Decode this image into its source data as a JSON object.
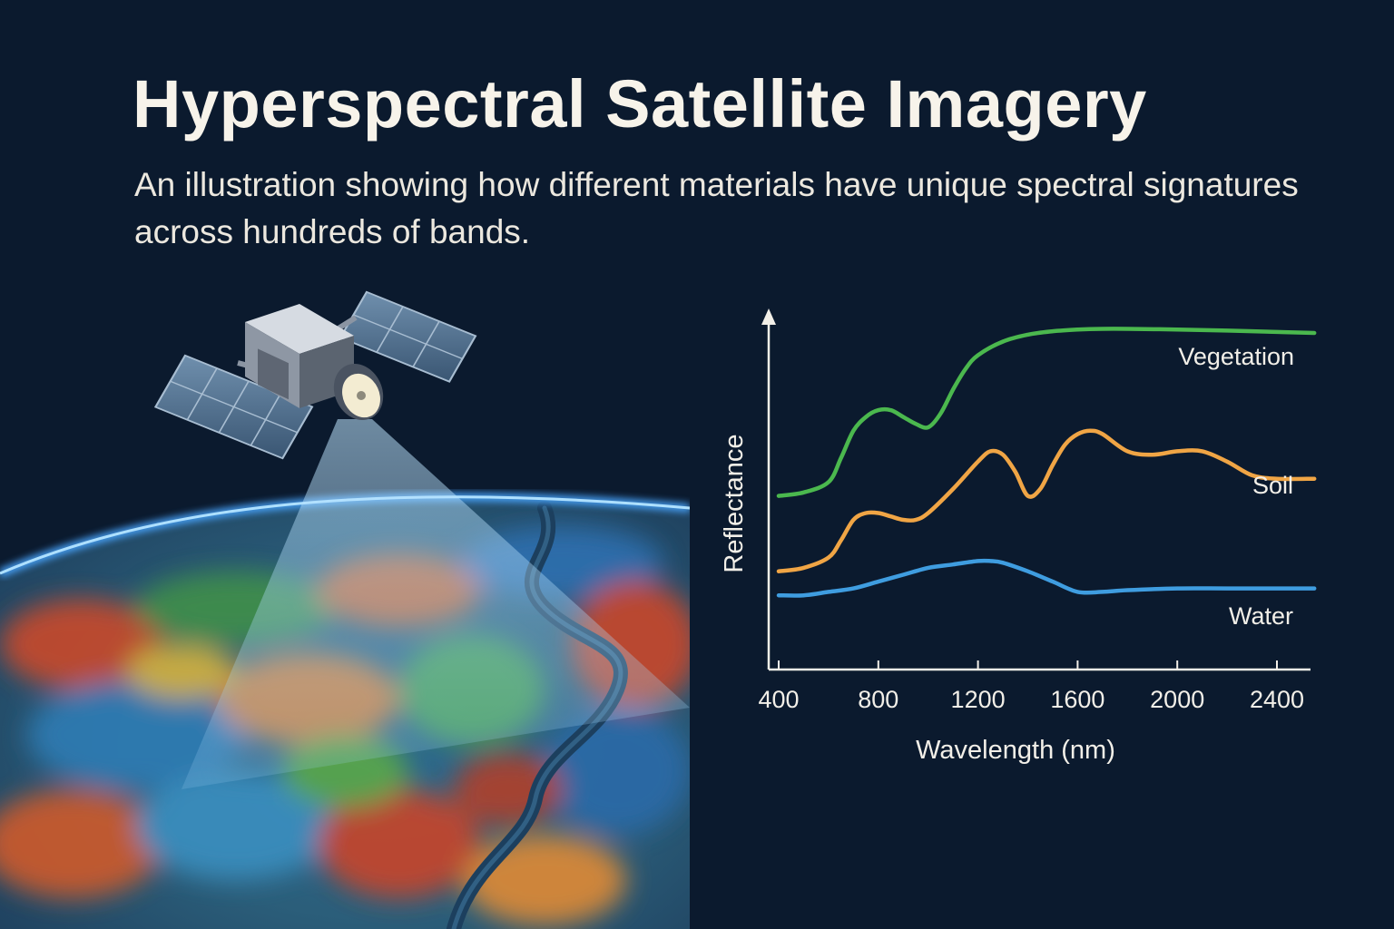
{
  "header": {
    "title": "Hyperspectral Satellite Imagery",
    "subtitle": "An illustration showing how different materials have unique spectral signatures across hundreds of bands."
  },
  "illustration": {
    "satellite_icon": "satellite-icon",
    "earth_icon": "earth-globe-icon",
    "colors": {
      "beam": "#7fc4f2",
      "atmosphere": "#49a6ff"
    }
  },
  "chart_data": {
    "type": "line",
    "xlabel": "Wavelength (nm)",
    "ylabel": "Reflectance",
    "xlim": [
      400,
      2550
    ],
    "ylim": [
      0,
      1
    ],
    "x_ticks": [
      400,
      800,
      1200,
      1600,
      2000,
      2400
    ],
    "grid": false,
    "legend": "inline-right",
    "series": [
      {
        "name": "Vegetation",
        "color": "#4bb84e",
        "x": [
          400,
          500,
          600,
          650,
          700,
          750,
          800,
          850,
          900,
          950,
          1000,
          1050,
          1100,
          1150,
          1200,
          1300,
          1400,
          1500,
          1600,
          1700,
          1800,
          2000,
          2200,
          2400,
          2550
        ],
        "y": [
          0.48,
          0.49,
          0.52,
          0.59,
          0.67,
          0.71,
          0.73,
          0.73,
          0.71,
          0.69,
          0.68,
          0.72,
          0.79,
          0.85,
          0.89,
          0.93,
          0.95,
          0.96,
          0.965,
          0.967,
          0.967,
          0.965,
          0.962,
          0.958,
          0.955
        ]
      },
      {
        "name": "Soil",
        "color": "#f0a545",
        "x": [
          400,
          500,
          600,
          650,
          700,
          750,
          800,
          850,
          900,
          950,
          1000,
          1100,
          1200,
          1250,
          1300,
          1350,
          1400,
          1450,
          1500,
          1550,
          1600,
          1650,
          1700,
          1800,
          1900,
          2000,
          2100,
          2200,
          2300,
          2400,
          2550
        ],
        "y": [
          0.26,
          0.27,
          0.3,
          0.35,
          0.41,
          0.43,
          0.43,
          0.42,
          0.41,
          0.41,
          0.43,
          0.5,
          0.58,
          0.61,
          0.6,
          0.55,
          0.48,
          0.5,
          0.57,
          0.63,
          0.66,
          0.67,
          0.66,
          0.61,
          0.6,
          0.61,
          0.61,
          0.58,
          0.54,
          0.53,
          0.53
        ]
      },
      {
        "name": "Water",
        "color": "#3f9de0",
        "x": [
          400,
          500,
          600,
          700,
          800,
          900,
          1000,
          1100,
          1200,
          1250,
          1300,
          1400,
          1500,
          1600,
          1700,
          1800,
          2000,
          2200,
          2400,
          2550
        ],
        "y": [
          0.19,
          0.19,
          0.2,
          0.21,
          0.23,
          0.25,
          0.27,
          0.28,
          0.29,
          0.29,
          0.285,
          0.26,
          0.23,
          0.2,
          0.2,
          0.205,
          0.21,
          0.21,
          0.21,
          0.21
        ]
      }
    ]
  }
}
